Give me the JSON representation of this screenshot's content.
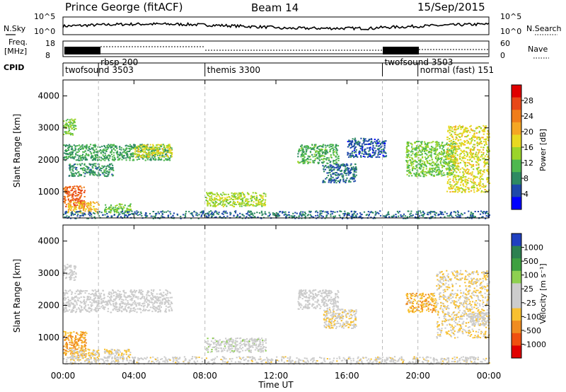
{
  "header": {
    "station": "Prince George (fitACF)",
    "beam": "Beam 14",
    "date": "15/Sep/2015"
  },
  "strip_labels": {
    "nsky": "N.Sky",
    "nsky_top": "10^5",
    "nsky_bottom": "10^0",
    "nsky_right_top": "10^5",
    "nsky_right_bottom": "10^0",
    "nsearch": "N.Search",
    "freq": "Freq.",
    "freq_unit": "[MHz]",
    "freq_top": "18",
    "freq_bottom": "8",
    "nave": "Nave",
    "nave_top": "60",
    "nave_bottom": "0",
    "cpid": "CPID"
  },
  "cpid_segments": [
    {
      "label": "twofsound 3503",
      "start_h": 0
    },
    {
      "label": "rbsp 200",
      "start_h": 2
    },
    {
      "label": "themis 3300",
      "start_h": 8
    },
    {
      "label": "twofsound 3503",
      "start_h": 18
    },
    {
      "label": "normal (fast) 151",
      "start_h": 20
    }
  ],
  "axes": {
    "x_ticks": [
      "00:00",
      "04:00",
      "08:00",
      "12:00",
      "16:00",
      "20:00",
      "00:00"
    ],
    "x_label": "Time UT",
    "y_label": "Slant Range [km]",
    "y_ticks": [
      "1000",
      "2000",
      "3000",
      "4000"
    ]
  },
  "colorbars": {
    "power": {
      "label": "Power [dB]",
      "ticks": [
        "4",
        "8",
        "12",
        "16",
        "20",
        "24",
        "28"
      ],
      "colors": [
        "#0000ff",
        "#1e48aa",
        "#2e8a62",
        "#4fb84f",
        "#9bd42a",
        "#e8d820",
        "#f5a623",
        "#f07d1a",
        "#e84818",
        "#e00000"
      ]
    },
    "velocity": {
      "label": "Velocity [m s⁻¹]",
      "ticks": [
        "1000",
        "500",
        "100",
        "25",
        "-25",
        "-100",
        "-500",
        "-1000"
      ],
      "colors": [
        "#2040c0",
        "#2c8050",
        "#3ea040",
        "#8ed050",
        "#cccccc",
        "#cccccc",
        "#f8c030",
        "#f08c20",
        "#f05010",
        "#e00000"
      ]
    }
  },
  "chart_data": [
    {
      "type": "heatmap",
      "title": "Power",
      "x_range_h": [
        0,
        24
      ],
      "ylim": [
        180,
        4500
      ],
      "xlabel": "Time UT",
      "ylabel": "Slant Range [km]",
      "colorbar_label": "Power [dB]",
      "colorbar_range": [
        0,
        30
      ],
      "regions": [
        {
          "t0": 0.0,
          "t1": 1.2,
          "r0": 500,
          "r1": 1200,
          "value": 24
        },
        {
          "t0": 0.2,
          "t1": 2.0,
          "r0": 350,
          "r1": 700,
          "value": 18
        },
        {
          "t0": 0.0,
          "t1": 0.7,
          "r0": 2800,
          "r1": 3300,
          "value": 12
        },
        {
          "t0": 0.0,
          "t1": 6.1,
          "r0": 2000,
          "r1": 2500,
          "value": 9
        },
        {
          "t0": 0.3,
          "t1": 2.8,
          "r0": 1500,
          "r1": 1900,
          "value": 8
        },
        {
          "t0": 4.0,
          "t1": 6.1,
          "r0": 2100,
          "r1": 2500,
          "value": 16
        },
        {
          "t0": 2.3,
          "t1": 3.8,
          "r0": 350,
          "r1": 650,
          "value": 12
        },
        {
          "t0": 8.0,
          "t1": 11.4,
          "r0": 550,
          "r1": 1000,
          "value": 14
        },
        {
          "t0": 0.0,
          "t1": 24.0,
          "r0": 180,
          "r1": 420,
          "value": 6
        },
        {
          "t0": 13.2,
          "t1": 15.5,
          "r0": 1900,
          "r1": 2500,
          "value": 10
        },
        {
          "t0": 14.6,
          "t1": 16.5,
          "r0": 1300,
          "r1": 1900,
          "value": 6
        },
        {
          "t0": 16.0,
          "t1": 18.2,
          "r0": 2100,
          "r1": 2700,
          "value": 5
        },
        {
          "t0": 19.3,
          "t1": 22.1,
          "r0": 1500,
          "r1": 2600,
          "value": 12
        },
        {
          "t0": 21.6,
          "t1": 24.0,
          "r0": 1000,
          "r1": 3100,
          "value": 16
        }
      ]
    },
    {
      "type": "heatmap",
      "title": "Velocity",
      "x_range_h": [
        0,
        24
      ],
      "ylim": [
        180,
        4500
      ],
      "xlabel": "Time UT",
      "ylabel": "Slant Range [km]",
      "colorbar_label": "Velocity [m s⁻¹]",
      "colorbar_range": [
        -1000,
        1000
      ],
      "regions": [
        {
          "t0": 0.0,
          "t1": 1.3,
          "r0": 450,
          "r1": 1200,
          "value": -400
        },
        {
          "t0": 0.3,
          "t1": 2.0,
          "r0": 300,
          "r1": 650,
          "value": -200
        },
        {
          "t0": 0.0,
          "t1": 0.7,
          "r0": 2800,
          "r1": 3300,
          "value": -10
        },
        {
          "t0": 0.0,
          "t1": 6.1,
          "r0": 1800,
          "r1": 2500,
          "value": 0
        },
        {
          "t0": 2.3,
          "t1": 3.8,
          "r0": 350,
          "r1": 650,
          "value": -150
        },
        {
          "t0": 8.0,
          "t1": 11.4,
          "r0": 550,
          "r1": 1000,
          "value": 60
        },
        {
          "t0": 0.0,
          "t1": 24.0,
          "r0": 180,
          "r1": 420,
          "value": -60
        },
        {
          "t0": 13.2,
          "t1": 15.5,
          "r0": 1900,
          "r1": 2500,
          "value": 0
        },
        {
          "t0": 14.6,
          "t1": 16.5,
          "r0": 1300,
          "r1": 1900,
          "value": -150
        },
        {
          "t0": 19.3,
          "t1": 21.0,
          "r0": 1800,
          "r1": 2400,
          "value": -350
        },
        {
          "t0": 21.0,
          "t1": 24.0,
          "r0": 1000,
          "r1": 3100,
          "value": -200
        },
        {
          "t0": 22.8,
          "t1": 24.0,
          "r0": 1400,
          "r1": 1800,
          "value": 10
        }
      ]
    }
  ]
}
